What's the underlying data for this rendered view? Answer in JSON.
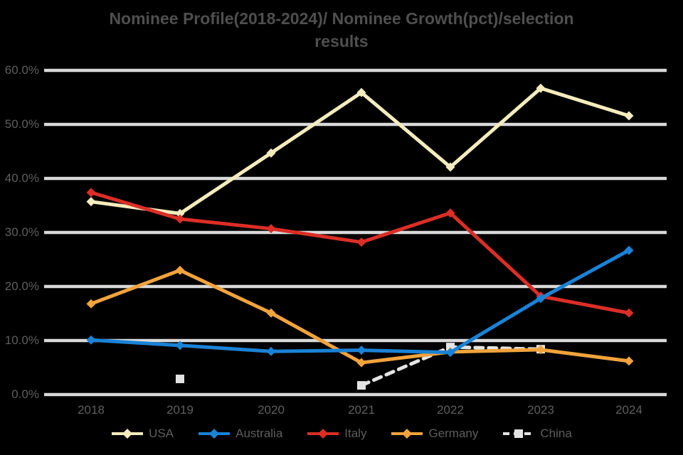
{
  "title": {
    "line1": "Nominee Profile(2018-2024)/ Nominee Growth(pct)/selection",
    "line2": "results"
  },
  "chart_data": {
    "type": "line",
    "x": [
      "2018",
      "2019",
      "2020",
      "2021",
      "2022",
      "2023",
      "2024"
    ],
    "series": [
      {
        "name": "USA",
        "color": "#F5ECBE",
        "marker": "diamond",
        "dashed": false,
        "values": [
          35.7,
          33.5,
          44.7,
          55.9,
          42.1,
          56.7,
          51.6
        ],
        "z": 2
      },
      {
        "name": "Australia",
        "color": "#1A82D6",
        "marker": "diamond",
        "dashed": false,
        "values": [
          10.1,
          9.1,
          8.0,
          8.2,
          7.8,
          17.8,
          26.7
        ],
        "z": 5
      },
      {
        "name": "Italy",
        "color": "#DB2E26",
        "marker": "diamond",
        "dashed": false,
        "values": [
          37.4,
          32.5,
          30.7,
          28.2,
          33.6,
          18.2,
          15.1
        ],
        "z": 3
      },
      {
        "name": "Germany",
        "color": "#F1A33C",
        "marker": "diamond",
        "dashed": false,
        "values": [
          16.8,
          23.0,
          15.1,
          5.9,
          7.9,
          8.3,
          6.2
        ],
        "z": 4
      },
      {
        "name": "China",
        "color": "#E3E3E3",
        "marker": "square",
        "dashed": true,
        "values": [
          null,
          2.9,
          null,
          1.7,
          8.8,
          8.4,
          null
        ],
        "z": 1
      }
    ],
    "yticks": [
      0,
      10,
      20,
      30,
      40,
      50,
      60
    ],
    "ytick_labels": [
      "0.0%",
      "10.0%",
      "20.0%",
      "30.0%",
      "40.0%",
      "50.0%",
      "60.0%"
    ],
    "ylim": [
      0,
      60
    ],
    "grid": true,
    "gridline_color": "#D9D9D9",
    "background_color": "#000000",
    "text_color": "#5e5e5e",
    "legend_position": "bottom"
  }
}
